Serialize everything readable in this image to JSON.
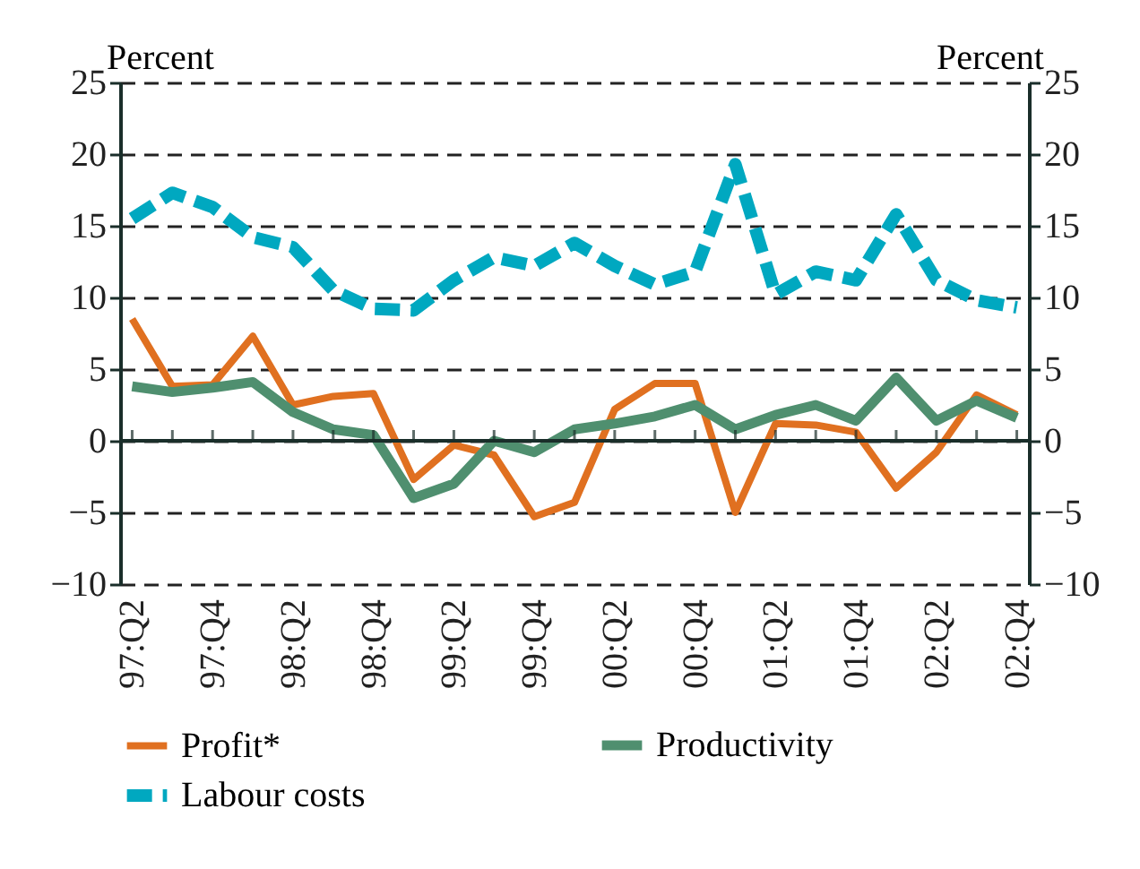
{
  "chart_data": {
    "type": "line",
    "ylabel": "Percent",
    "y2label": "Percent",
    "categories": [
      "97:Q2",
      null,
      "97:Q4",
      null,
      "98:Q2",
      null,
      "98:Q4",
      null,
      "99:Q2",
      null,
      "99:Q4",
      null,
      "00:Q2",
      null,
      "00:Q4",
      null,
      "01:Q2",
      null,
      "01:Q4",
      null,
      "02:Q2",
      null,
      "02:Q4"
    ],
    "series": [
      {
        "name": "Profit*",
        "color": "#e07020",
        "line_style": "solid",
        "values": [
          8.5,
          3.8,
          3.9,
          7.3,
          2.5,
          3.1,
          3.3,
          -2.7,
          -0.3,
          -1.0,
          -5.3,
          -4.3,
          2.2,
          4.0,
          4.0,
          -5.0,
          1.2,
          1.1,
          0.6,
          -3.3,
          -0.8,
          3.2,
          1.8
        ]
      },
      {
        "name": "Productivity",
        "color": "#4f8f6f",
        "line_style": "solid",
        "values": [
          3.8,
          3.4,
          3.7,
          4.1,
          2.0,
          0.8,
          0.4,
          -4.0,
          -3.0,
          0,
          -0.8,
          0.8,
          1.2,
          1.7,
          2.5,
          0.8,
          1.8,
          2.5,
          1.4,
          4.4,
          1.4,
          2.8,
          1.6
        ]
      },
      {
        "name": "Labour costs",
        "color": "#00a8c0",
        "line_style": "dashed",
        "values": [
          15.5,
          17.3,
          16.3,
          14.2,
          13.5,
          10.5,
          9.2,
          9.1,
          11.2,
          12.8,
          12.2,
          13.8,
          12.2,
          10.9,
          11.8,
          19.3,
          10.2,
          11.8,
          11.2,
          15.8,
          11.2,
          9.8,
          9.3
        ]
      }
    ],
    "ylim": [
      -10,
      25
    ],
    "yticks": [
      -10,
      -5,
      0,
      5,
      10,
      15,
      20,
      25
    ],
    "y2lim": [
      -10,
      25
    ],
    "y2ticks": [
      -10,
      -5,
      0,
      5,
      10,
      15,
      20,
      25
    ],
    "ref_lines": [
      {
        "axis": "y",
        "value": 0
      }
    ],
    "grid": "y",
    "legend": "bottom",
    "marker": "none"
  }
}
